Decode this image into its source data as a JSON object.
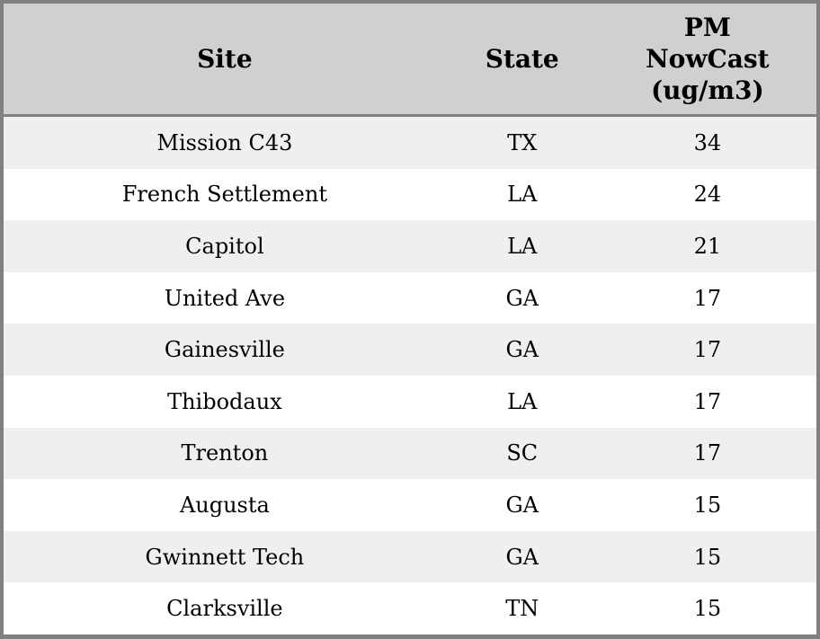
{
  "chart_data": {
    "type": "table",
    "columns": [
      {
        "label": "Site"
      },
      {
        "label": "State"
      },
      {
        "label": "PM NowCast (ug/m3)",
        "lines": [
          "PM",
          "NowCast",
          "(ug/m3)"
        ]
      }
    ],
    "rows": [
      {
        "site": "Mission C43",
        "state": "TX",
        "pm_nowcast": "34"
      },
      {
        "site": "French Settlement",
        "state": "LA",
        "pm_nowcast": "24"
      },
      {
        "site": "Capitol",
        "state": "LA",
        "pm_nowcast": "21"
      },
      {
        "site": "United Ave",
        "state": "GA",
        "pm_nowcast": "17"
      },
      {
        "site": "Gainesville",
        "state": "GA",
        "pm_nowcast": "17"
      },
      {
        "site": "Thibodaux",
        "state": "LA",
        "pm_nowcast": "17"
      },
      {
        "site": "Trenton",
        "state": "SC",
        "pm_nowcast": "17"
      },
      {
        "site": "Augusta",
        "state": "GA",
        "pm_nowcast": "15"
      },
      {
        "site": "Gwinnett Tech",
        "state": "GA",
        "pm_nowcast": "15"
      },
      {
        "site": "Clarksville",
        "state": "TN",
        "pm_nowcast": "15"
      }
    ],
    "layout": {
      "grid": "alternating-row-shading",
      "legend": "none"
    }
  },
  "colors": {
    "border": "#808080",
    "header_bg": "#d0d0d0",
    "row_alt_bg": "#efefef",
    "row_bg": "#ffffff",
    "text": "#000000"
  }
}
